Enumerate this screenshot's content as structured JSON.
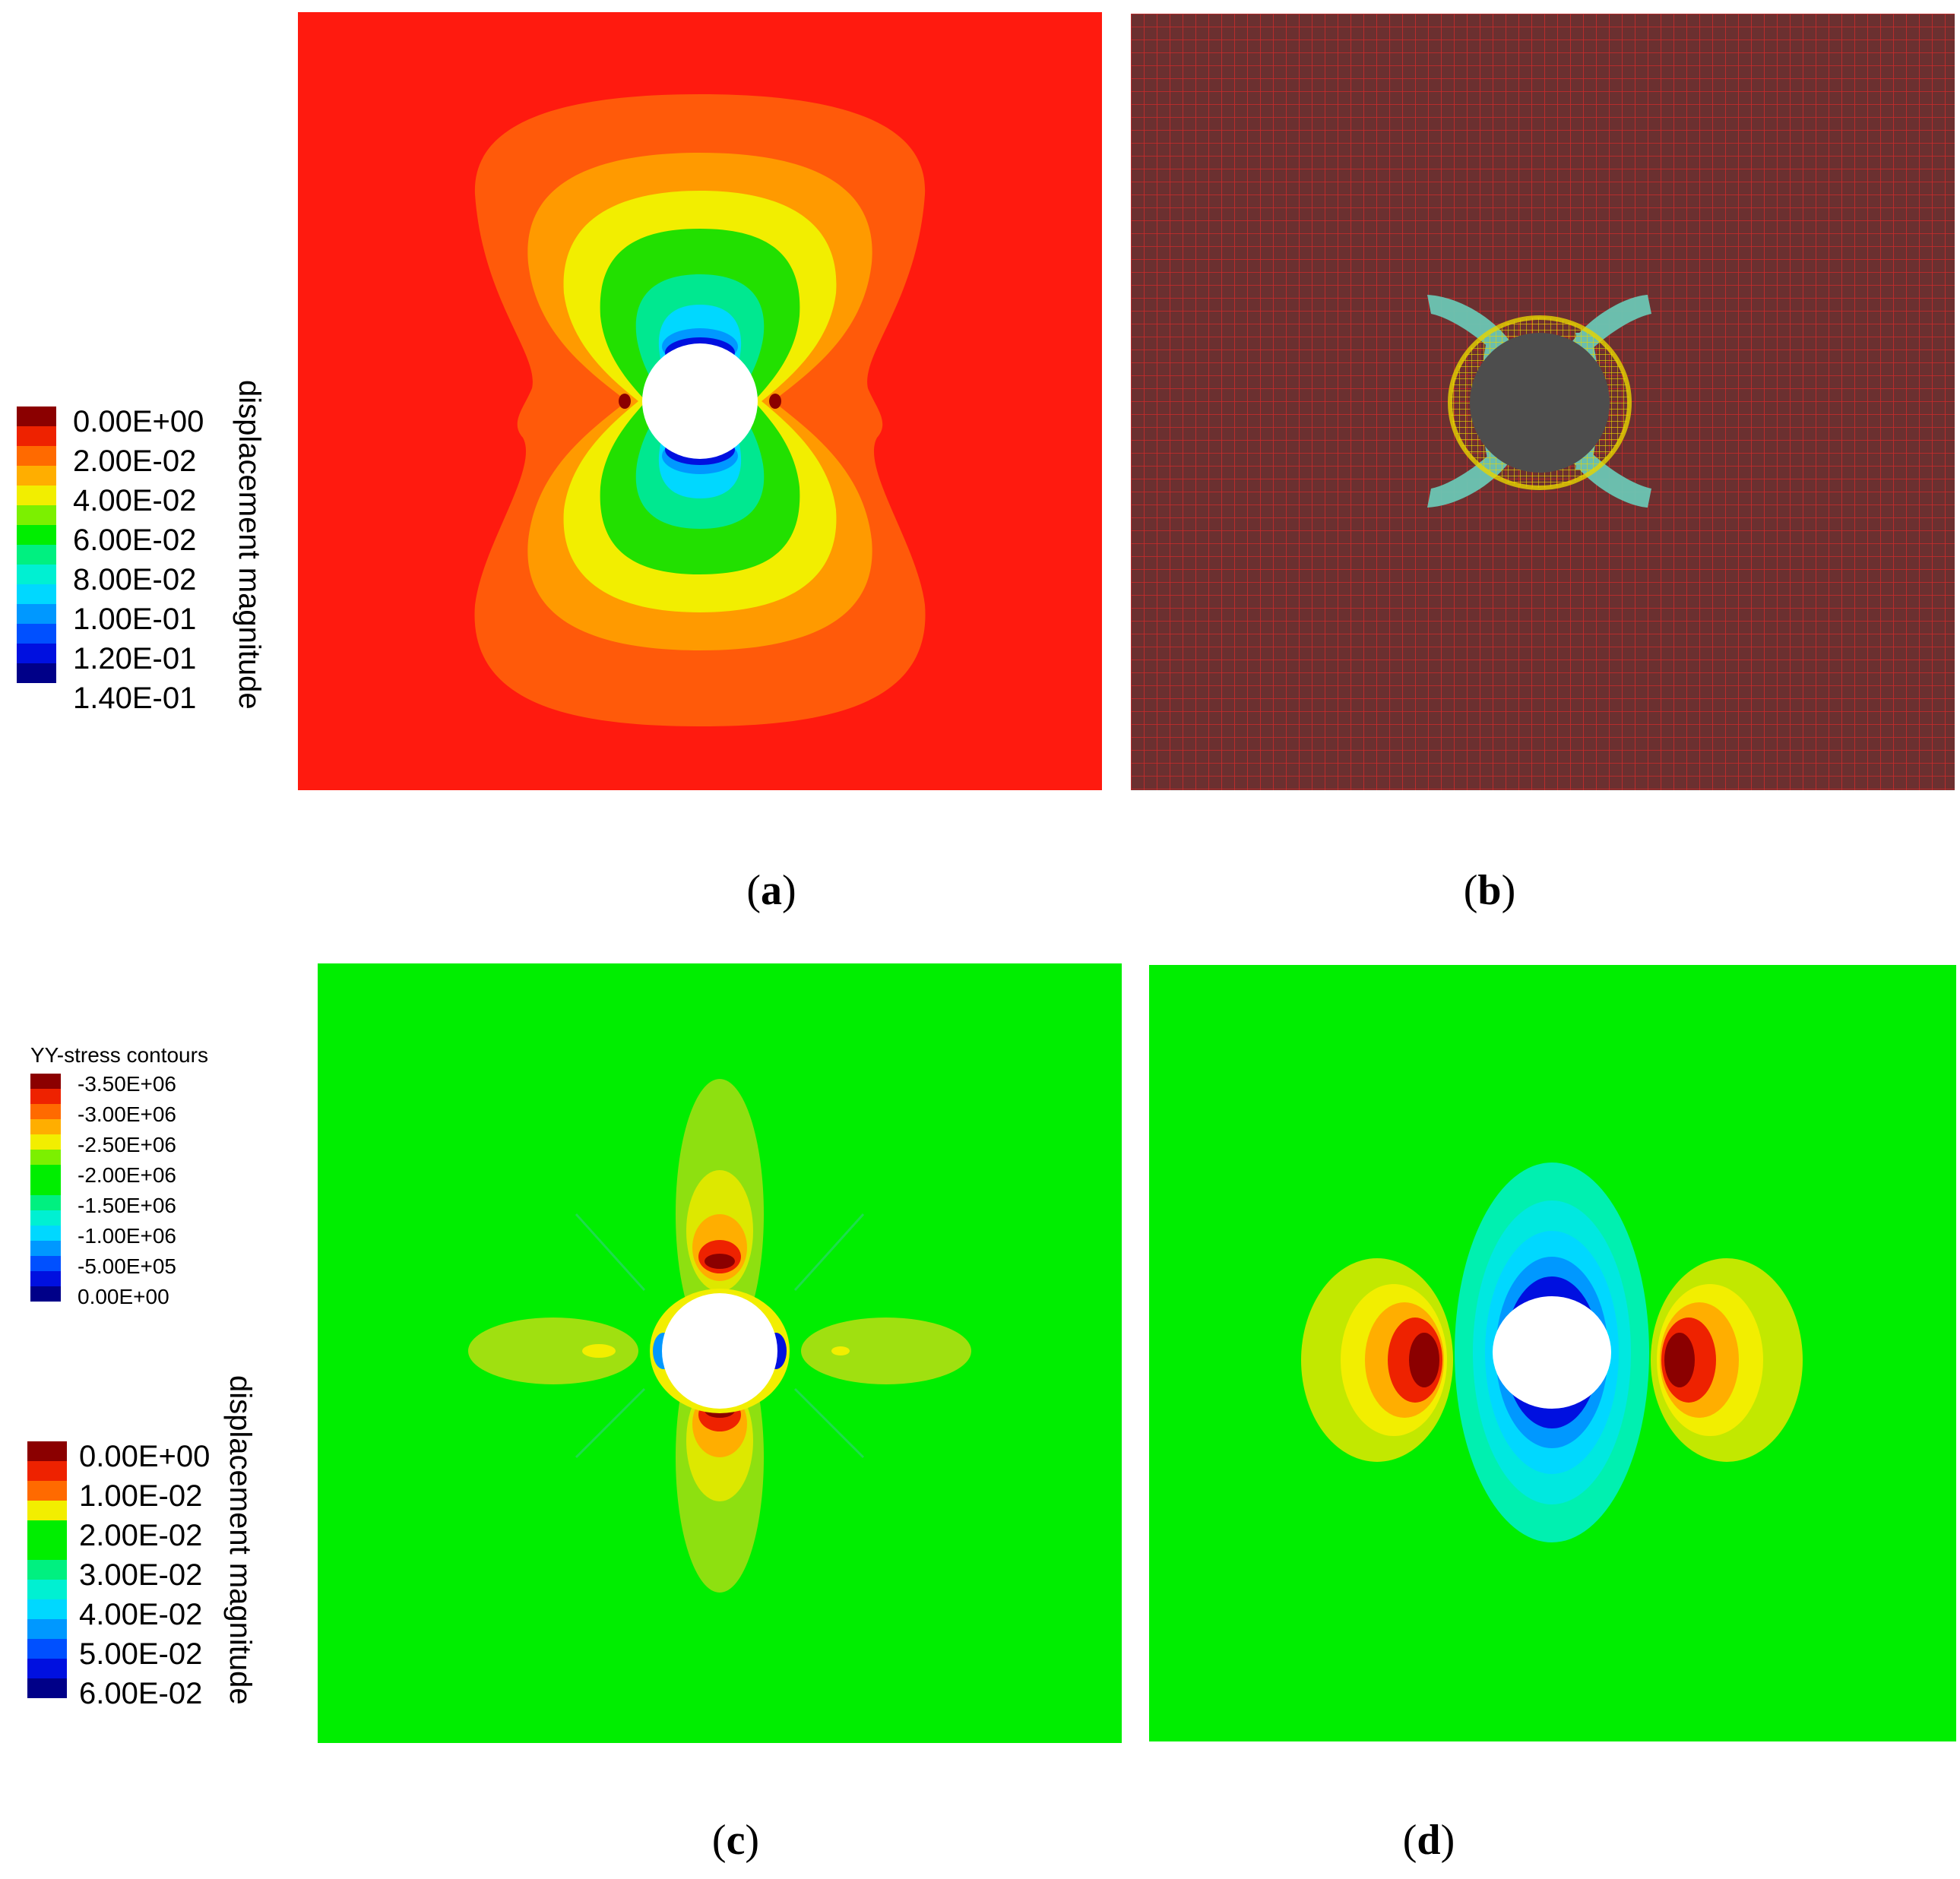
{
  "colors": {
    "scale": [
      "#8b0000",
      "#ee2200",
      "#ff6a00",
      "#ffae00",
      "#f2ee00",
      "#7cf000",
      "#00ee00",
      "#00f080",
      "#00f0d2",
      "#00d8ff",
      "#0098ff",
      "#0050ff",
      "#0010e0",
      "#000088"
    ],
    "background_red": "#ff1a0f",
    "mesh_background": "#6b3030",
    "mesh_line": "#cc2a2a",
    "field_green": "#00ee00",
    "hole": "#ffffff",
    "hole_mesh": "#4d4d4d"
  },
  "panel_a": {
    "legend": {
      "title": "displacement magnitude",
      "ticks": [
        "0.00E+00",
        "2.00E-02",
        "4.00E-02",
        "6.00E-02",
        "8.00E-02",
        "1.00E-01",
        "1.20E-01",
        "1.40E-01"
      ]
    },
    "caption_open": "(",
    "caption_letter": "a",
    "caption_close": ")"
  },
  "panel_b": {
    "caption_open": "(",
    "caption_letter": "b",
    "caption_close": ")"
  },
  "panel_c": {
    "stress_legend": {
      "title": "YY-stress contours",
      "ticks": [
        "-3.50E+06",
        "-3.00E+06",
        "-2.50E+06",
        "-2.00E+06",
        "-1.50E+06",
        "-1.00E+06",
        "-5.00E+05",
        "0.00E+00"
      ]
    },
    "displacement_legend": {
      "title": "displacement magnitude",
      "ticks": [
        "0.00E+00",
        "1.00E-02",
        "2.00E-02",
        "3.00E-02",
        "4.00E-02",
        "5.00E-02",
        "6.00E-02"
      ]
    },
    "caption_open": "(",
    "caption_letter": "c",
    "caption_close": ")"
  },
  "panel_d": {
    "caption_open": "(",
    "caption_letter": "d",
    "caption_close": ")"
  }
}
